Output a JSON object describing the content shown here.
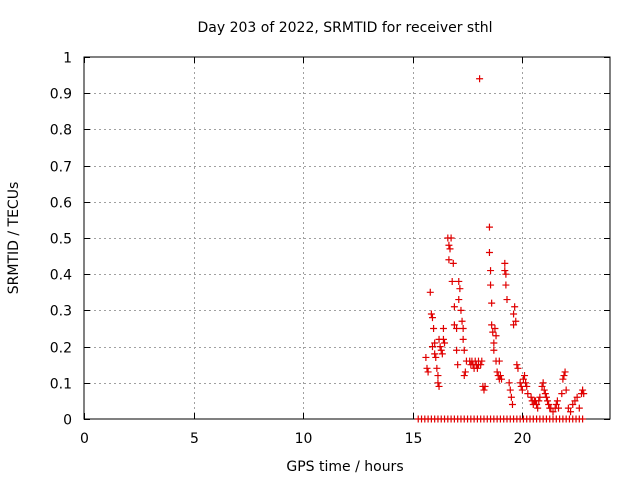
{
  "chart_data": {
    "type": "scatter",
    "title": "Day 203 of 2022, SRMTID for receiver sthl",
    "xlabel": "GPS time / hours",
    "ylabel": "SRMTID / TECUs",
    "xlim": [
      0,
      24
    ],
    "ylim": [
      0,
      1
    ],
    "xticks": [
      0,
      5,
      10,
      15,
      20
    ],
    "xtick_labels": [
      "0",
      "5",
      "10",
      "15",
      "20"
    ],
    "yticks": [
      0,
      0.1,
      0.2,
      0.3,
      0.4,
      0.5,
      0.6,
      0.7,
      0.8,
      0.9,
      1
    ],
    "ytick_labels": [
      "0",
      "0.1",
      "0.2",
      "0.3",
      "0.4",
      "0.5",
      "0.6",
      "0.7",
      "0.8",
      "0.9",
      "1"
    ],
    "grid": true,
    "marker_color": "#e00000",
    "marker": "plus",
    "series": [
      {
        "name": "SRMTID",
        "points": [
          [
            15.25,
            0.0
          ],
          [
            15.4,
            0.0
          ],
          [
            15.55,
            0.0
          ],
          [
            15.7,
            0.0
          ],
          [
            15.85,
            0.0
          ],
          [
            16.0,
            0.0
          ],
          [
            16.15,
            0.0
          ],
          [
            16.3,
            0.0
          ],
          [
            16.45,
            0.0
          ],
          [
            16.6,
            0.0
          ],
          [
            16.75,
            0.0
          ],
          [
            16.9,
            0.0
          ],
          [
            17.05,
            0.0
          ],
          [
            17.2,
            0.0
          ],
          [
            17.35,
            0.0
          ],
          [
            17.5,
            0.0
          ],
          [
            17.65,
            0.0
          ],
          [
            17.8,
            0.0
          ],
          [
            17.95,
            0.0
          ],
          [
            18.1,
            0.0
          ],
          [
            18.25,
            0.0
          ],
          [
            18.4,
            0.0
          ],
          [
            18.55,
            0.0
          ],
          [
            18.7,
            0.0
          ],
          [
            18.85,
            0.0
          ],
          [
            19.0,
            0.0
          ],
          [
            19.15,
            0.0
          ],
          [
            19.3,
            0.0
          ],
          [
            19.45,
            0.0
          ],
          [
            19.6,
            0.0
          ],
          [
            19.75,
            0.0
          ],
          [
            19.9,
            0.0
          ],
          [
            20.05,
            0.0
          ],
          [
            20.2,
            0.0
          ],
          [
            20.35,
            0.0
          ],
          [
            20.5,
            0.0
          ],
          [
            20.65,
            0.0
          ],
          [
            20.8,
            0.0
          ],
          [
            20.95,
            0.0
          ],
          [
            21.1,
            0.0
          ],
          [
            21.25,
            0.0
          ],
          [
            21.4,
            0.0
          ],
          [
            21.55,
            0.0
          ],
          [
            21.7,
            0.0
          ],
          [
            21.85,
            0.0
          ],
          [
            22.0,
            0.0
          ],
          [
            22.15,
            0.0
          ],
          [
            22.3,
            0.0
          ],
          [
            22.45,
            0.0
          ],
          [
            22.6,
            0.0
          ],
          [
            22.75,
            0.0
          ],
          [
            15.6,
            0.17
          ],
          [
            15.65,
            0.14
          ],
          [
            15.7,
            0.13
          ],
          [
            15.8,
            0.35
          ],
          [
            15.85,
            0.29
          ],
          [
            15.9,
            0.28
          ],
          [
            15.95,
            0.25
          ],
          [
            16.0,
            0.21
          ],
          [
            16.0,
            0.18
          ],
          [
            16.05,
            0.17
          ],
          [
            15.9,
            0.2
          ],
          [
            16.1,
            0.14
          ],
          [
            16.15,
            0.12
          ],
          [
            16.15,
            0.1
          ],
          [
            16.2,
            0.09
          ],
          [
            16.2,
            0.22
          ],
          [
            16.25,
            0.2
          ],
          [
            16.3,
            0.19
          ],
          [
            16.35,
            0.18
          ],
          [
            16.4,
            0.25
          ],
          [
            16.4,
            0.22
          ],
          [
            16.45,
            0.21
          ],
          [
            16.6,
            0.5
          ],
          [
            16.65,
            0.48
          ],
          [
            16.65,
            0.44
          ],
          [
            16.7,
            0.47
          ],
          [
            16.75,
            0.5
          ],
          [
            16.8,
            0.38
          ],
          [
            16.85,
            0.43
          ],
          [
            16.9,
            0.26
          ],
          [
            16.9,
            0.31
          ],
          [
            17.0,
            0.25
          ],
          [
            17.0,
            0.19
          ],
          [
            17.05,
            0.15
          ],
          [
            17.1,
            0.33
          ],
          [
            17.1,
            0.38
          ],
          [
            17.15,
            0.36
          ],
          [
            17.2,
            0.3
          ],
          [
            17.25,
            0.27
          ],
          [
            17.3,
            0.25
          ],
          [
            17.3,
            0.22
          ],
          [
            17.35,
            0.19
          ],
          [
            17.35,
            0.12
          ],
          [
            17.4,
            0.13
          ],
          [
            17.45,
            0.16
          ],
          [
            17.6,
            0.16
          ],
          [
            17.65,
            0.15
          ],
          [
            17.7,
            0.16
          ],
          [
            17.75,
            0.15
          ],
          [
            17.8,
            0.14
          ],
          [
            17.85,
            0.16
          ],
          [
            17.9,
            0.15
          ],
          [
            17.95,
            0.14
          ],
          [
            18.0,
            0.16
          ],
          [
            18.0,
            0.15
          ],
          [
            18.05,
            0.94
          ],
          [
            18.1,
            0.15
          ],
          [
            18.15,
            0.16
          ],
          [
            18.2,
            0.09
          ],
          [
            18.25,
            0.08
          ],
          [
            18.3,
            0.09
          ],
          [
            18.5,
            0.53
          ],
          [
            18.5,
            0.46
          ],
          [
            18.55,
            0.41
          ],
          [
            18.55,
            0.37
          ],
          [
            18.6,
            0.32
          ],
          [
            18.6,
            0.26
          ],
          [
            18.65,
            0.24
          ],
          [
            18.7,
            0.21
          ],
          [
            18.7,
            0.19
          ],
          [
            18.75,
            0.25
          ],
          [
            18.8,
            0.23
          ],
          [
            18.8,
            0.16
          ],
          [
            18.85,
            0.13
          ],
          [
            18.9,
            0.12
          ],
          [
            18.95,
            0.11
          ],
          [
            18.95,
            0.16
          ],
          [
            19.0,
            0.12
          ],
          [
            19.05,
            0.11
          ],
          [
            19.2,
            0.43
          ],
          [
            19.2,
            0.41
          ],
          [
            19.25,
            0.4
          ],
          [
            19.25,
            0.37
          ],
          [
            19.3,
            0.33
          ],
          [
            19.4,
            0.1
          ],
          [
            19.45,
            0.08
          ],
          [
            19.5,
            0.06
          ],
          [
            19.55,
            0.04
          ],
          [
            19.6,
            0.26
          ],
          [
            19.6,
            0.29
          ],
          [
            19.65,
            0.31
          ],
          [
            19.7,
            0.27
          ],
          [
            19.75,
            0.15
          ],
          [
            19.8,
            0.14
          ],
          [
            19.9,
            0.1
          ],
          [
            19.95,
            0.09
          ],
          [
            20.0,
            0.08
          ],
          [
            20.05,
            0.11
          ],
          [
            20.1,
            0.12
          ],
          [
            20.15,
            0.1
          ],
          [
            20.2,
            0.09
          ],
          [
            20.25,
            0.07
          ],
          [
            20.4,
            0.06
          ],
          [
            20.45,
            0.05
          ],
          [
            20.5,
            0.04
          ],
          [
            20.55,
            0.05
          ],
          [
            20.6,
            0.05
          ],
          [
            20.65,
            0.04
          ],
          [
            20.7,
            0.03
          ],
          [
            20.75,
            0.05
          ],
          [
            20.8,
            0.06
          ],
          [
            20.9,
            0.09
          ],
          [
            20.95,
            0.1
          ],
          [
            21.0,
            0.08
          ],
          [
            21.05,
            0.07
          ],
          [
            21.1,
            0.06
          ],
          [
            21.15,
            0.05
          ],
          [
            21.2,
            0.04
          ],
          [
            21.25,
            0.03
          ],
          [
            21.3,
            0.03
          ],
          [
            21.4,
            0.02
          ],
          [
            21.5,
            0.03
          ],
          [
            21.55,
            0.04
          ],
          [
            21.6,
            0.05
          ],
          [
            21.65,
            0.03
          ],
          [
            21.8,
            0.07
          ],
          [
            21.85,
            0.11
          ],
          [
            21.9,
            0.12
          ],
          [
            21.95,
            0.13
          ],
          [
            22.0,
            0.08
          ],
          [
            22.1,
            0.03
          ],
          [
            22.2,
            0.02
          ],
          [
            22.3,
            0.04
          ],
          [
            22.4,
            0.05
          ],
          [
            22.5,
            0.06
          ],
          [
            22.6,
            0.03
          ],
          [
            22.7,
            0.07
          ],
          [
            22.75,
            0.08
          ],
          [
            22.8,
            0.07
          ]
        ]
      }
    ]
  }
}
